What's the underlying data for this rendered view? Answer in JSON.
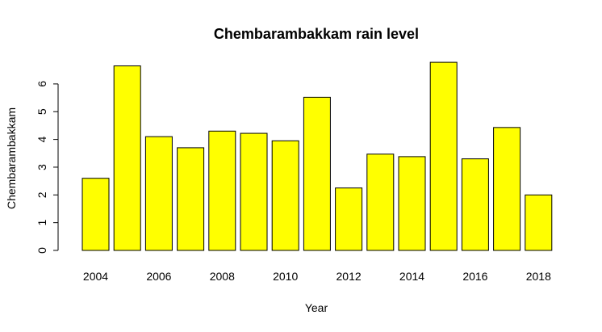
{
  "chart_data": {
    "type": "bar",
    "title": "Chembarambakkam rain level",
    "xlabel": "Year",
    "ylabel": "Chembarambakkam",
    "categories": [
      "2004",
      "2005",
      "2006",
      "2007",
      "2008",
      "2009",
      "2010",
      "2011",
      "2012",
      "2013",
      "2014",
      "2015",
      "2016",
      "2017",
      "2018"
    ],
    "values": [
      2.6,
      6.65,
      4.1,
      3.7,
      4.3,
      4.22,
      3.95,
      5.52,
      2.25,
      3.47,
      3.38,
      6.78,
      3.3,
      4.43,
      2.0
    ],
    "shown_x_tick_labels": [
      "2004",
      "2006",
      "2008",
      "2010",
      "2012",
      "2014",
      "2016",
      "2018"
    ],
    "y_ticks": [
      0,
      1,
      2,
      3,
      4,
      5,
      6
    ],
    "ylim": [
      0,
      7
    ],
    "bar_color": "#ffff00",
    "grid": false,
    "legend": "none"
  }
}
